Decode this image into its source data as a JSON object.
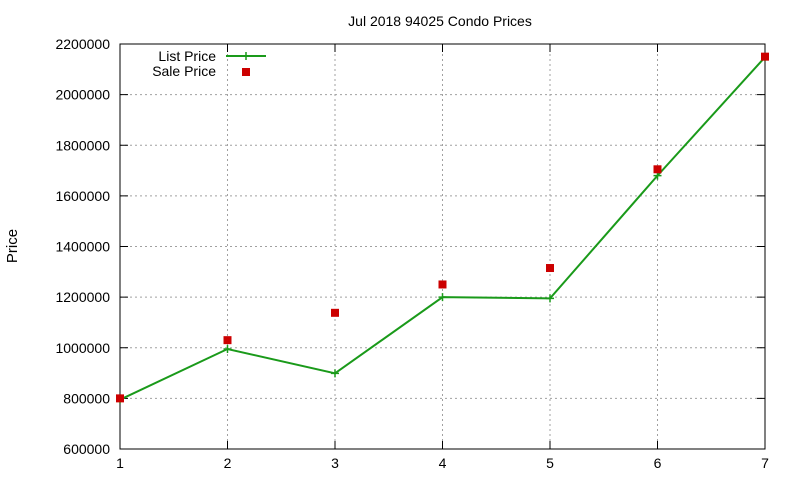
{
  "chart_data": {
    "type": "line",
    "title": "Jul 2018 94025 Condo Prices",
    "xlabel": "",
    "ylabel": "Price",
    "x": [
      1,
      2,
      3,
      4,
      5,
      6,
      7
    ],
    "xlim": [
      1,
      7
    ],
    "ylim": [
      600000,
      2200000
    ],
    "xticks": [
      1,
      2,
      3,
      4,
      5,
      6,
      7
    ],
    "yticks": [
      600000,
      800000,
      1000000,
      1200000,
      1400000,
      1600000,
      1800000,
      2000000,
      2200000
    ],
    "grid": true,
    "legend_position": "top-left",
    "series": [
      {
        "name": "List Price",
        "style": "lines+points",
        "color": "#1a9a1a",
        "values": [
          795000,
          995000,
          899000,
          1200000,
          1195000,
          1680000,
          2148000
        ]
      },
      {
        "name": "Sale Price",
        "style": "points",
        "color": "#cc0000",
        "values": [
          800000,
          1030000,
          1138000,
          1250000,
          1315000,
          1705000,
          2150000
        ]
      }
    ]
  }
}
